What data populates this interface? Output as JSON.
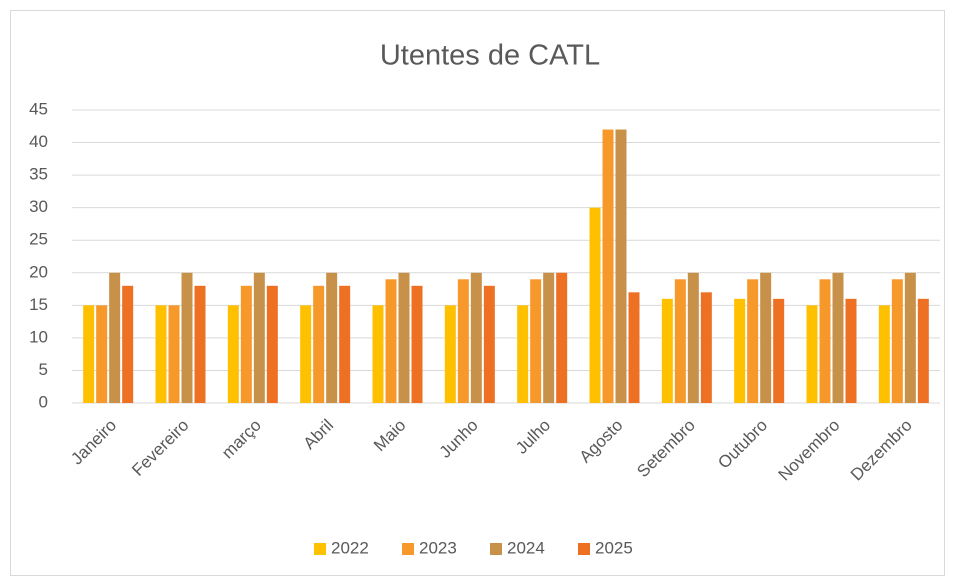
{
  "chart_data": {
    "type": "bar",
    "title": "Utentes de CATL",
    "categories": [
      "Janeiro",
      "Fevereiro",
      "março",
      "Abril",
      "Maio",
      "Junho",
      "Julho",
      "Agosto",
      "Setembro",
      "Outubro",
      "Novembro",
      "Dezembro"
    ],
    "series": [
      {
        "name": "2022",
        "color": "#ffc000",
        "values": [
          15,
          15,
          15,
          15,
          15,
          15,
          15,
          30,
          16,
          16,
          15,
          15
        ]
      },
      {
        "name": "2023",
        "color": "#f7982b",
        "values": [
          15,
          15,
          18,
          18,
          19,
          19,
          19,
          42,
          19,
          19,
          19,
          19
        ]
      },
      {
        "name": "2024",
        "color": "#c8914a",
        "values": [
          20,
          20,
          20,
          20,
          20,
          20,
          20,
          42,
          20,
          20,
          20,
          20
        ]
      },
      {
        "name": "2025",
        "color": "#ee7023",
        "values": [
          18,
          18,
          18,
          18,
          18,
          18,
          20,
          17,
          17,
          16,
          16,
          16
        ]
      }
    ],
    "ylim": [
      0,
      45
    ],
    "yticks": [
      0,
      5,
      10,
      15,
      20,
      25,
      30,
      35,
      40,
      45
    ],
    "grid": true,
    "legend": "bottom"
  }
}
